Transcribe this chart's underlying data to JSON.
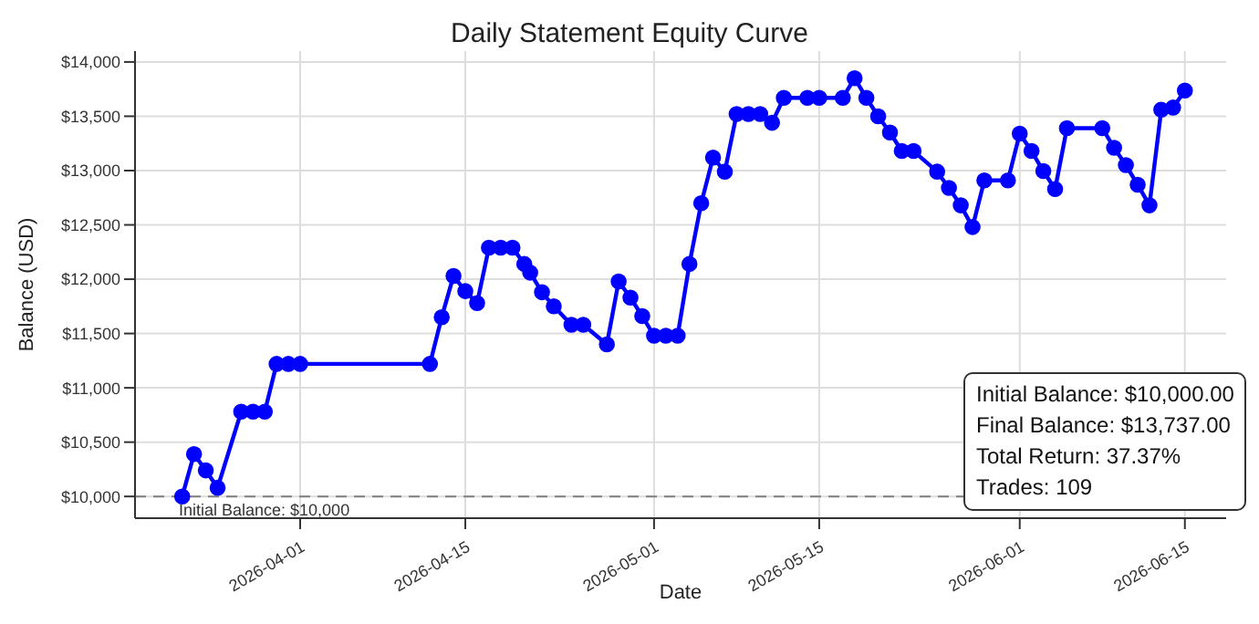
{
  "chart_data": {
    "type": "line",
    "title": "Daily Statement Equity Curve",
    "xlabel": "Date",
    "ylabel": "Balance (USD)",
    "x": [
      "2026-03-22",
      "2026-03-23",
      "2026-03-24",
      "2026-03-25",
      "2026-03-27",
      "2026-03-28",
      "2026-03-29",
      "2026-03-30",
      "2026-03-31",
      "2026-04-01",
      "2026-04-12",
      "2026-04-13",
      "2026-04-14",
      "2026-04-15",
      "2026-04-16",
      "2026-04-17",
      "2026-04-18",
      "2026-04-19",
      "2026-04-20",
      "2026-04-20T12:00",
      "2026-04-21T12:00",
      "2026-04-22T12:00",
      "2026-04-24",
      "2026-04-25",
      "2026-04-27",
      "2026-04-28",
      "2026-04-29",
      "2026-04-30",
      "2026-05-01",
      "2026-05-02",
      "2026-05-03",
      "2026-05-04",
      "2026-05-05",
      "2026-05-06",
      "2026-05-07",
      "2026-05-08",
      "2026-05-09",
      "2026-05-10",
      "2026-05-11",
      "2026-05-12",
      "2026-05-14",
      "2026-05-15",
      "2026-05-17",
      "2026-05-18",
      "2026-05-19",
      "2026-05-20",
      "2026-05-21",
      "2026-05-22",
      "2026-05-23",
      "2026-05-25",
      "2026-05-26",
      "2026-05-27",
      "2026-05-28",
      "2026-05-29",
      "2026-05-31",
      "2026-06-01",
      "2026-06-02",
      "2026-06-03",
      "2026-06-04",
      "2026-06-05",
      "2026-06-08",
      "2026-06-09",
      "2026-06-10",
      "2026-06-11",
      "2026-06-12",
      "2026-06-13",
      "2026-06-14",
      "2026-06-15"
    ],
    "series": [
      {
        "color": "#0000ff",
        "values": [
          10000,
          10390,
          10240,
          10080,
          10780,
          10780,
          10780,
          11220,
          11220,
          11220,
          11220,
          11650,
          12030,
          11890,
          11780,
          12290,
          12290,
          12290,
          12140,
          12060,
          11880,
          11750,
          11580,
          11580,
          11400,
          11980,
          11830,
          11660,
          11480,
          11480,
          11480,
          12140,
          12700,
          13120,
          12990,
          13520,
          13520,
          13520,
          13440,
          13670,
          13670,
          13670,
          13670,
          13850,
          13670,
          13500,
          13350,
          13180,
          13180,
          12990,
          12840,
          12680,
          12480,
          12910,
          12910,
          13340,
          13180,
          12995,
          12830,
          13390,
          13390,
          13210,
          13050,
          12870,
          12680,
          13560,
          13580,
          13737
        ]
      }
    ],
    "xlim": [
      "2026-03-18",
      "2026-06-18T12:00"
    ],
    "xticks": [
      {
        "value": "2026-04-01",
        "label": "2026-04-01"
      },
      {
        "value": "2026-04-15",
        "label": "2026-04-15"
      },
      {
        "value": "2026-05-01",
        "label": "2026-05-01"
      },
      {
        "value": "2026-05-15",
        "label": "2026-05-15"
      },
      {
        "value": "2026-06-01",
        "label": "2026-06-01"
      },
      {
        "value": "2026-06-15",
        "label": "2026-06-15"
      }
    ],
    "ylim": [
      9800,
      14100
    ],
    "yticks": [
      {
        "value": 10000,
        "label": "$10,000"
      },
      {
        "value": 10500,
        "label": "$10,500"
      },
      {
        "value": 11000,
        "label": "$11,000"
      },
      {
        "value": 11500,
        "label": "$11,500"
      },
      {
        "value": 12000,
        "label": "$12,000"
      },
      {
        "value": 12500,
        "label": "$12,500"
      },
      {
        "value": 13000,
        "label": "$13,000"
      },
      {
        "value": 13500,
        "label": "$13,500"
      },
      {
        "value": 14000,
        "label": "$14,000"
      }
    ],
    "ref_lines": [
      {
        "axis": "y",
        "value": 10000,
        "label": "Initial Balance: $10,000",
        "color": "#808080",
        "line_style": "dashed"
      }
    ],
    "annotations": [
      "Initial Balance: $10,000.00",
      "Final Balance: $13,737.00",
      "Total Return: 37.37%",
      "Trades: 109"
    ],
    "grid": true,
    "marker": "circle",
    "line_style": "solid"
  }
}
